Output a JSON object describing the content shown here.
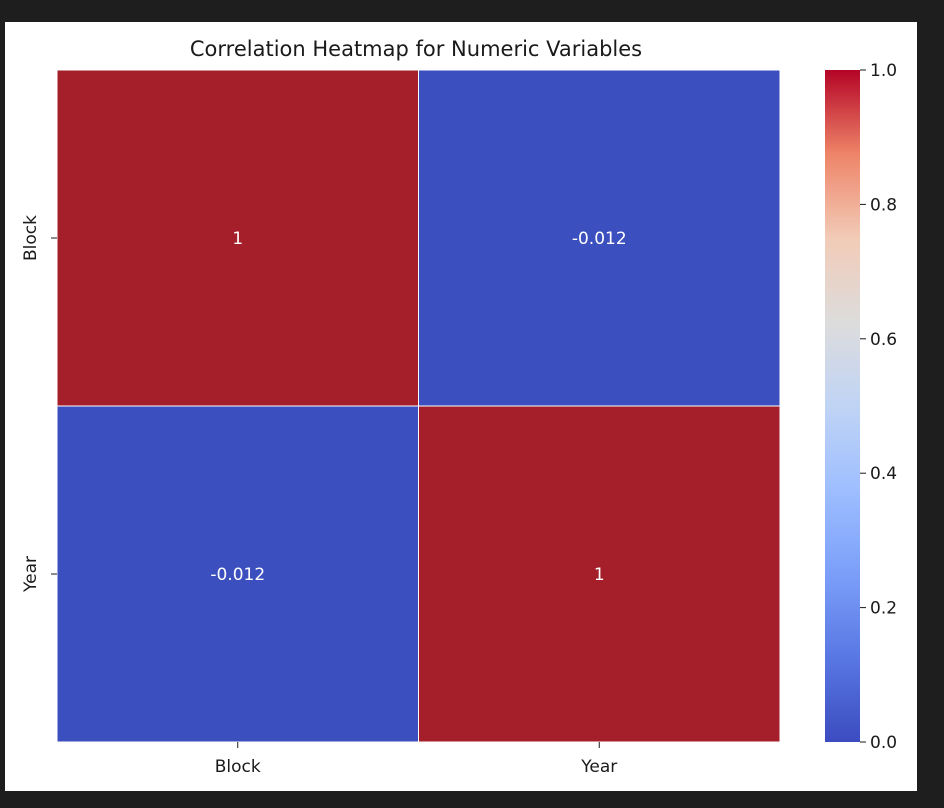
{
  "chart_data": {
    "type": "heatmap",
    "title": "Correlation Heatmap for Numeric Variables",
    "x_labels": [
      "Block",
      "Year"
    ],
    "y_labels": [
      "Block",
      "Year"
    ],
    "values": [
      [
        1,
        -0.012
      ],
      [
        -0.012,
        1
      ]
    ],
    "annotations": [
      [
        "1",
        "-0.012"
      ],
      [
        "-0.012",
        "1"
      ]
    ],
    "colormap": "coolwarm",
    "colorbar": {
      "min": 0.0,
      "max": 1.0,
      "ticks": [
        0.0,
        0.2,
        0.4,
        0.6,
        0.8,
        1.0
      ],
      "tick_labels": [
        "0.0",
        "0.2",
        "0.4",
        "0.6",
        "0.8",
        "1.0"
      ]
    },
    "colors": {
      "high": "#a51f2b",
      "low": "#3c4fbe",
      "cell_border": "#ffffff",
      "page_background": "#1e1e1e"
    }
  }
}
